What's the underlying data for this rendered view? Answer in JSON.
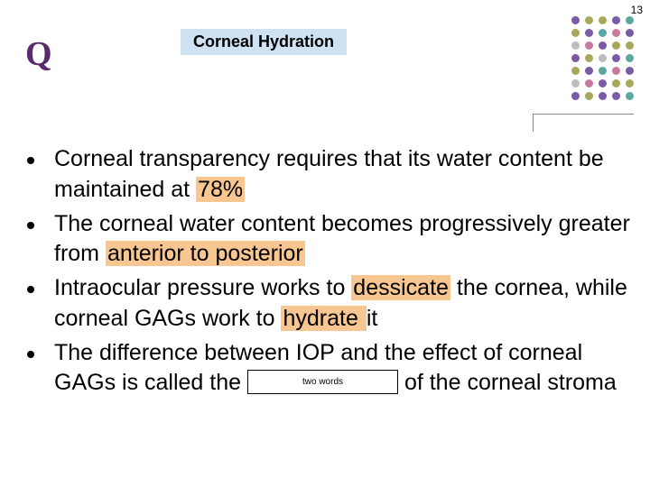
{
  "page_number": "13",
  "q_label": "Q",
  "title": "Corneal Hydration",
  "bullets": [
    {
      "pre1": "Corneal transparency requires that its water content be maintained at ",
      "hl1": "78%",
      "post1": ""
    },
    {
      "pre1": "The corneal water content becomes progressively greater from ",
      "hl1": "anterior to posterior",
      "post1": ""
    },
    {
      "pre1": "Intraocular pressure works to ",
      "hl1": "dessicate",
      "mid1": " the cornea, while corneal GAGs work to ",
      "hl2": " hydrate ",
      "post1": " it"
    },
    {
      "pre1": "The difference between IOP and the effect of corneal GAGs is called the ",
      "blank_hint": "two words",
      "post1": " of the corneal stroma"
    }
  ],
  "dot_colors": {
    "purple": "#7a5ba6",
    "olive": "#a8a85a",
    "teal": "#5aa8a0",
    "pink": "#c77a9e",
    "grey": "#bdbdbd"
  },
  "dot_layout": [
    [
      "purple",
      "olive",
      "olive",
      "purple",
      "teal"
    ],
    [
      "olive",
      "purple",
      "teal",
      "pink",
      "purple"
    ],
    [
      "grey",
      "pink",
      "purple",
      "olive",
      "olive"
    ],
    [
      "purple",
      "olive",
      "grey",
      "purple",
      "teal"
    ],
    [
      "olive",
      "purple",
      "teal",
      "pink",
      "purple"
    ],
    [
      "grey",
      "pink",
      "purple",
      "olive",
      "olive"
    ],
    [
      "purple",
      "olive",
      "purple",
      "purple",
      "teal"
    ]
  ]
}
